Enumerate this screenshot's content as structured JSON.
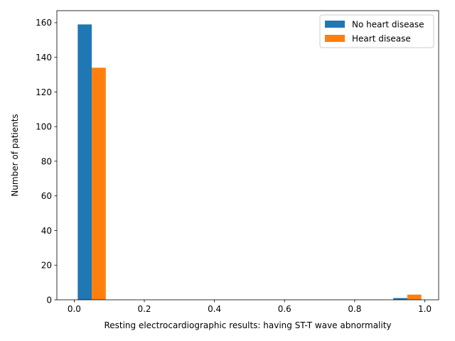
{
  "chart_data": {
    "type": "bar",
    "title": "",
    "xlabel": "Resting electrocardiographic results: having ST-T wave abnormality",
    "ylabel": "Number of patients",
    "xlim": [
      -0.0495,
      1.0395
    ],
    "ylim": [
      0,
      166.95
    ],
    "x_ticks": [
      0.0,
      0.2,
      0.4,
      0.6,
      0.8,
      1.0
    ],
    "x_tick_labels": [
      "0.0",
      "0.2",
      "0.4",
      "0.6",
      "0.8",
      "1.0"
    ],
    "y_ticks": [
      0,
      20,
      40,
      60,
      80,
      100,
      120,
      140,
      160
    ],
    "y_tick_labels": [
      "0",
      "20",
      "40",
      "60",
      "80",
      "100",
      "120",
      "140",
      "160"
    ],
    "grid": false,
    "legend_position": "top-right",
    "series": [
      {
        "name": "No heart disease",
        "color": "#1f77b4",
        "bins": [
          {
            "x0": 0.01,
            "x1": 0.05,
            "value": 159
          },
          {
            "x0": 0.91,
            "x1": 0.95,
            "value": 1
          }
        ]
      },
      {
        "name": "Heart disease",
        "color": "#ff7f0e",
        "bins": [
          {
            "x0": 0.05,
            "x1": 0.09,
            "value": 134
          },
          {
            "x0": 0.95,
            "x1": 0.99,
            "value": 3
          }
        ]
      }
    ]
  }
}
